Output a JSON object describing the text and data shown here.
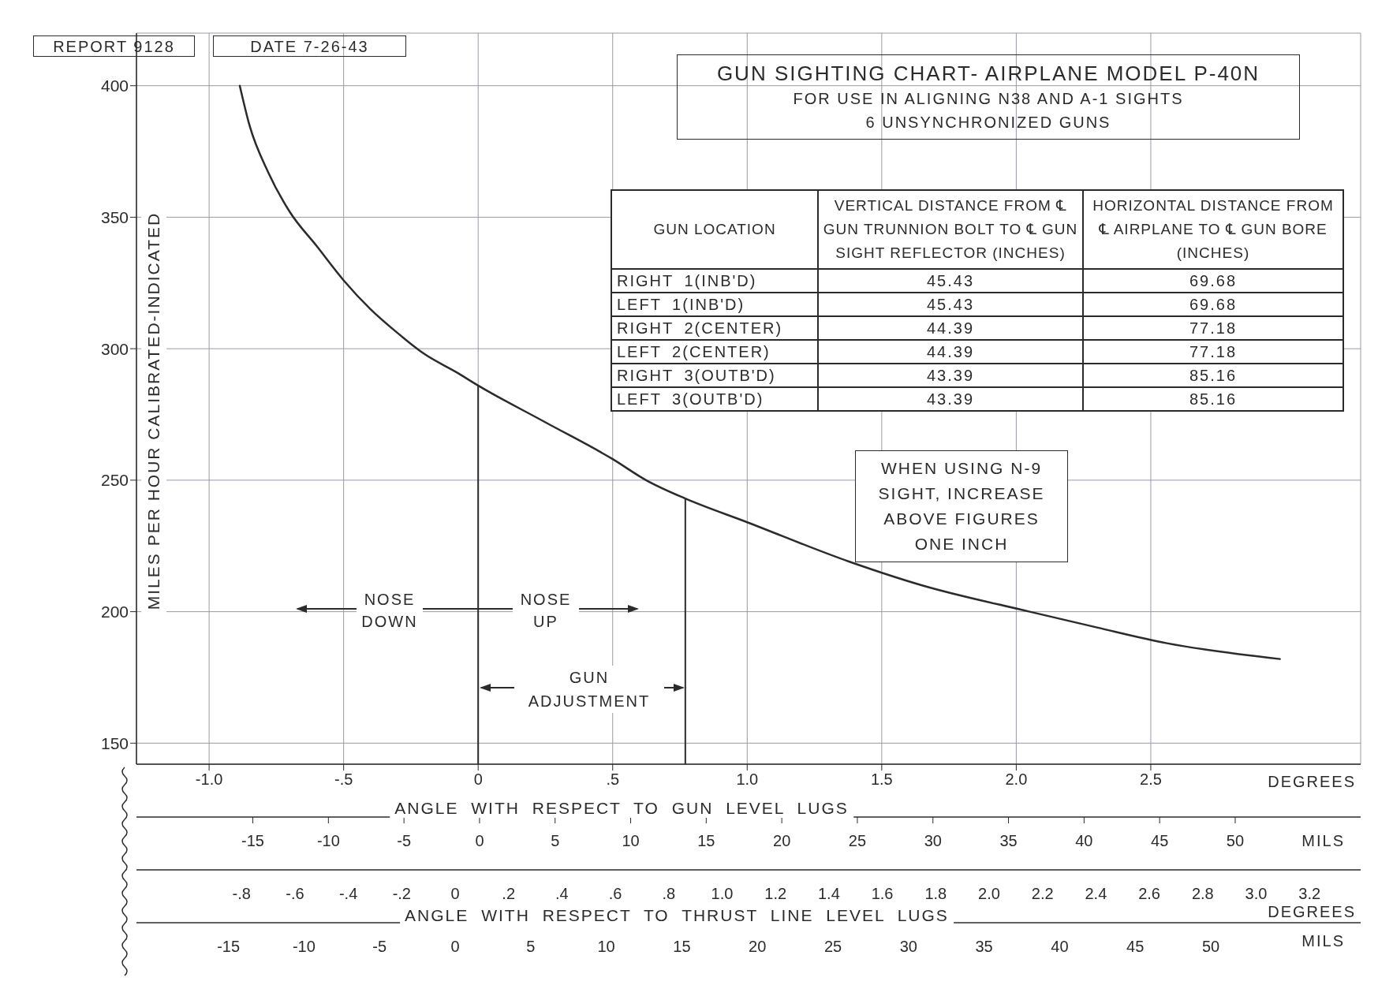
{
  "chart_data": {
    "type": "line",
    "title": "GUN SIGHTING CHART- AIRPLANE MODEL P-40N",
    "subtitle": "FOR USE IN ALIGNING N38 AND A-1 SIGHTS\n6 UNSYNCHRONIZED GUNS",
    "ylabel": "MILES PER HOUR CALIBRATED-INDICATED",
    "xlabel": "ANGLE WITH RESPECT TO GUN LEVEL LUGS",
    "x2label": "MILS",
    "series": [
      {
        "color": "#2b2b2b",
        "x": [
          -0.886,
          -0.85,
          -0.78,
          -0.7,
          -0.6,
          -0.5,
          -0.4,
          -0.3,
          -0.2,
          -0.08,
          0,
          0.25,
          0.5,
          0.624,
          0.77,
          1.0,
          1.38,
          1.65,
          2.05,
          2.3,
          2.56,
          2.98
        ],
        "values": [
          400,
          385,
          367,
          352,
          339,
          326,
          315,
          306,
          298,
          291,
          286,
          272,
          258,
          250,
          243,
          234,
          219,
          210,
          200,
          194,
          188,
          182
        ]
      }
    ],
    "xlim": [
      -1.27,
      3.28
    ],
    "xticks": [
      {
        "value": -1,
        "label": "-1.0"
      },
      {
        "value": -0.5,
        "label": "-.5"
      },
      0,
      {
        "value": 0.5,
        "label": ".5"
      },
      {
        "value": 1,
        "label": "1.0"
      },
      1.5,
      {
        "value": 2,
        "label": "2.0"
      },
      2.5
    ],
    "x2lim": [
      -22.7,
      58.3
    ],
    "x2ticks": [
      -15,
      -10,
      -5,
      0,
      5,
      10,
      15,
      20,
      25,
      30,
      35,
      40,
      45,
      50
    ],
    "ylim": [
      142,
      420
    ],
    "yticks": [
      150,
      200,
      250,
      300,
      350,
      400
    ],
    "grid": true,
    "marker": "none",
    "ref_lines": [
      {
        "axis": "x",
        "value": 0
      },
      {
        "axis": "x",
        "value": 0.77
      }
    ],
    "annotations": [
      "REPORT 9128",
      "DATE 7-26-43",
      "GUN LOCATION",
      "VERTICAL DISTANCE FROM ℄ GUN TRUNNION BOLT TO ℄ GUN SIGHT REFLECTOR (INCHES)",
      "HORIZONTAL DISTANCE FROM ℄ AIRPLANE TO ℄ GUN BORE (INCHES)",
      "RIGHT 1(INB'D)",
      "45.43",
      "69.68",
      "LEFT 1(INB'D)",
      "45.43",
      "69.68",
      "RIGHT 2(CENTER)",
      "44.39",
      "77.18",
      "LEFT 2(CENTER)",
      "44.39",
      "77.18",
      "RIGHT 3(OUTB'D)",
      "43.39",
      "85.16",
      "LEFT 3(OUTB'D)",
      "43.39",
      "85.16",
      "WHEN USING N-9 SIGHT, INCREASE ABOVE FIGURES ONE INCH",
      "NOSE DOWN",
      "NOSE UP",
      "GUN ADJUSTMENT",
      "DEGREES",
      "ANGLE WITH RESPECT TO THRUST LINE LEVEL LUGS",
      "DEGREES",
      "MILS",
      "-.8",
      "-.6",
      "-.4",
      "-.2",
      "0",
      ".2",
      ".4",
      ".6",
      ".8",
      "1.0",
      "1.2",
      "1.4",
      "1.6",
      "1.8",
      "2.0",
      "2.2",
      "2.4",
      "2.6",
      "2.8",
      "3.0",
      "3.2",
      "-15",
      "-10",
      "-5",
      "0",
      "5",
      "10",
      "15",
      "20",
      "25",
      "30",
      "35",
      "40",
      "45",
      "50"
    ]
  }
}
